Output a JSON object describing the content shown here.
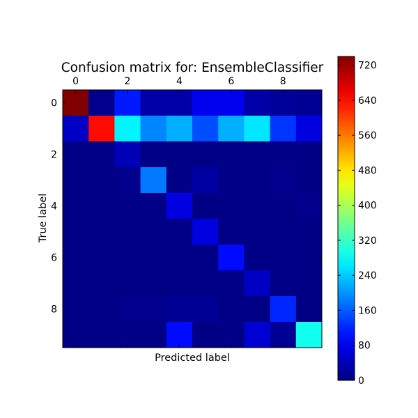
{
  "chart_data": {
    "type": "heatmap",
    "title": "Confusion matrix for: EnsembleClassifier",
    "xlabel": "Predicted label",
    "ylabel": "True label",
    "x_ticks": [
      "0",
      "2",
      "4",
      "6",
      "8"
    ],
    "y_ticks": [
      "0",
      "2",
      "4",
      "6",
      "8"
    ],
    "x_tick_values": [
      0,
      2,
      4,
      6,
      8
    ],
    "y_tick_values": [
      0,
      2,
      4,
      6,
      8
    ],
    "x_categories": [
      0,
      1,
      2,
      3,
      4,
      5,
      6,
      7,
      8,
      9
    ],
    "y_categories": [
      0,
      1,
      2,
      3,
      4,
      5,
      6,
      7,
      8,
      9
    ],
    "matrix": [
      [
        740,
        10,
        110,
        30,
        30,
        80,
        80,
        30,
        20,
        15
      ],
      [
        50,
        640,
        270,
        190,
        220,
        150,
        220,
        260,
        130,
        70
      ],
      [
        5,
        5,
        40,
        5,
        5,
        5,
        5,
        5,
        5,
        5
      ],
      [
        5,
        5,
        10,
        180,
        5,
        25,
        5,
        5,
        10,
        5
      ],
      [
        5,
        5,
        5,
        5,
        70,
        5,
        5,
        5,
        5,
        10
      ],
      [
        5,
        5,
        5,
        5,
        5,
        70,
        5,
        5,
        5,
        5
      ],
      [
        5,
        5,
        5,
        5,
        5,
        5,
        100,
        5,
        5,
        5
      ],
      [
        5,
        5,
        5,
        5,
        5,
        5,
        5,
        50,
        5,
        5
      ],
      [
        5,
        5,
        10,
        10,
        15,
        15,
        5,
        5,
        120,
        5
      ],
      [
        5,
        5,
        5,
        5,
        100,
        5,
        5,
        60,
        15,
        290
      ]
    ],
    "colorbar": {
      "min": 0,
      "max": 740,
      "ticks": [
        0,
        80,
        160,
        240,
        320,
        400,
        480,
        560,
        640,
        720
      ],
      "colormap": "jet"
    },
    "x_tick_position": "top",
    "grid": false
  }
}
